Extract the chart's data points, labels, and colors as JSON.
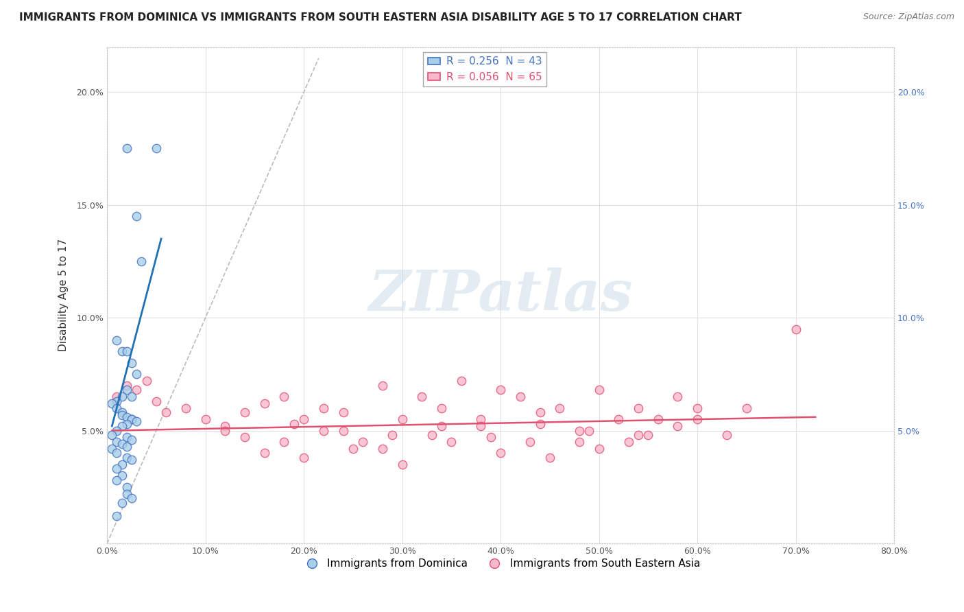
{
  "title": "IMMIGRANTS FROM DOMINICA VS IMMIGRANTS FROM SOUTH EASTERN ASIA DISABILITY AGE 5 TO 17 CORRELATION CHART",
  "source": "Source: ZipAtlas.com",
  "ylabel": "Disability Age 5 to 17",
  "xlim": [
    0,
    0.8
  ],
  "ylim": [
    0,
    0.22
  ],
  "xticks": [
    0.0,
    0.1,
    0.2,
    0.3,
    0.4,
    0.5,
    0.6,
    0.7,
    0.8
  ],
  "yticks": [
    0.0,
    0.05,
    0.1,
    0.15,
    0.2
  ],
  "legend_blue_label": "R = 0.256  N = 43",
  "legend_pink_label": "R = 0.056  N = 65",
  "legend_label_blue": "Immigrants from Dominica",
  "legend_label_pink": "Immigrants from South Eastern Asia",
  "color_blue_fill": "#a8cfe8",
  "color_pink_fill": "#f9b8cb",
  "color_blue_edge": "#4472c4",
  "color_pink_edge": "#e05070",
  "color_blue_line": "#2171b5",
  "color_pink_line": "#e05070",
  "color_right_axis": "#4472c4",
  "watermark": "ZIPatlas",
  "blue_scatter_x": [
    0.02,
    0.05,
    0.03,
    0.035,
    0.01,
    0.015,
    0.02,
    0.025,
    0.03,
    0.02,
    0.025,
    0.015,
    0.01,
    0.005,
    0.01,
    0.015,
    0.015,
    0.02,
    0.025,
    0.025,
    0.03,
    0.02,
    0.015,
    0.01,
    0.005,
    0.02,
    0.025,
    0.01,
    0.015,
    0.02,
    0.005,
    0.01,
    0.02,
    0.025,
    0.015,
    0.01,
    0.015,
    0.02,
    0.02,
    0.025,
    0.01,
    0.015,
    0.01
  ],
  "blue_scatter_y": [
    0.175,
    0.175,
    0.145,
    0.125,
    0.09,
    0.085,
    0.085,
    0.08,
    0.075,
    0.068,
    0.065,
    0.065,
    0.063,
    0.062,
    0.06,
    0.058,
    0.057,
    0.056,
    0.055,
    0.055,
    0.054,
    0.053,
    0.052,
    0.05,
    0.048,
    0.047,
    0.046,
    0.045,
    0.044,
    0.043,
    0.042,
    0.04,
    0.038,
    0.037,
    0.035,
    0.033,
    0.03,
    0.025,
    0.022,
    0.02,
    0.012,
    0.018,
    0.028
  ],
  "pink_scatter_x": [
    0.01,
    0.02,
    0.03,
    0.04,
    0.05,
    0.06,
    0.08,
    0.1,
    0.12,
    0.14,
    0.16,
    0.18,
    0.2,
    0.22,
    0.24,
    0.26,
    0.28,
    0.3,
    0.32,
    0.34,
    0.36,
    0.38,
    0.4,
    0.42,
    0.44,
    0.46,
    0.48,
    0.5,
    0.52,
    0.54,
    0.56,
    0.58,
    0.6,
    0.16,
    0.2,
    0.25,
    0.3,
    0.35,
    0.4,
    0.45,
    0.5,
    0.55,
    0.6,
    0.65,
    0.7,
    0.12,
    0.18,
    0.22,
    0.28,
    0.33,
    0.38,
    0.43,
    0.48,
    0.53,
    0.58,
    0.63,
    0.14,
    0.19,
    0.24,
    0.29,
    0.34,
    0.39,
    0.44,
    0.49,
    0.54
  ],
  "pink_scatter_y": [
    0.065,
    0.07,
    0.068,
    0.072,
    0.063,
    0.058,
    0.06,
    0.055,
    0.052,
    0.058,
    0.062,
    0.065,
    0.055,
    0.06,
    0.058,
    0.045,
    0.07,
    0.055,
    0.065,
    0.06,
    0.072,
    0.055,
    0.068,
    0.065,
    0.058,
    0.06,
    0.045,
    0.068,
    0.055,
    0.06,
    0.055,
    0.065,
    0.06,
    0.04,
    0.038,
    0.042,
    0.035,
    0.045,
    0.04,
    0.038,
    0.042,
    0.048,
    0.055,
    0.06,
    0.095,
    0.05,
    0.045,
    0.05,
    0.042,
    0.048,
    0.052,
    0.045,
    0.05,
    0.045,
    0.052,
    0.048,
    0.047,
    0.053,
    0.05,
    0.048,
    0.052,
    0.047,
    0.053,
    0.05,
    0.048
  ],
  "blue_line_x": [
    0.005,
    0.055
  ],
  "blue_line_y": [
    0.052,
    0.135
  ],
  "pink_line_x": [
    0.005,
    0.72
  ],
  "pink_line_y": [
    0.05,
    0.056
  ],
  "diag_line_x": [
    0.0,
    0.215
  ],
  "diag_line_y": [
    0.0,
    0.215
  ],
  "background_color": "#ffffff",
  "grid_color": "#e0e0e0"
}
